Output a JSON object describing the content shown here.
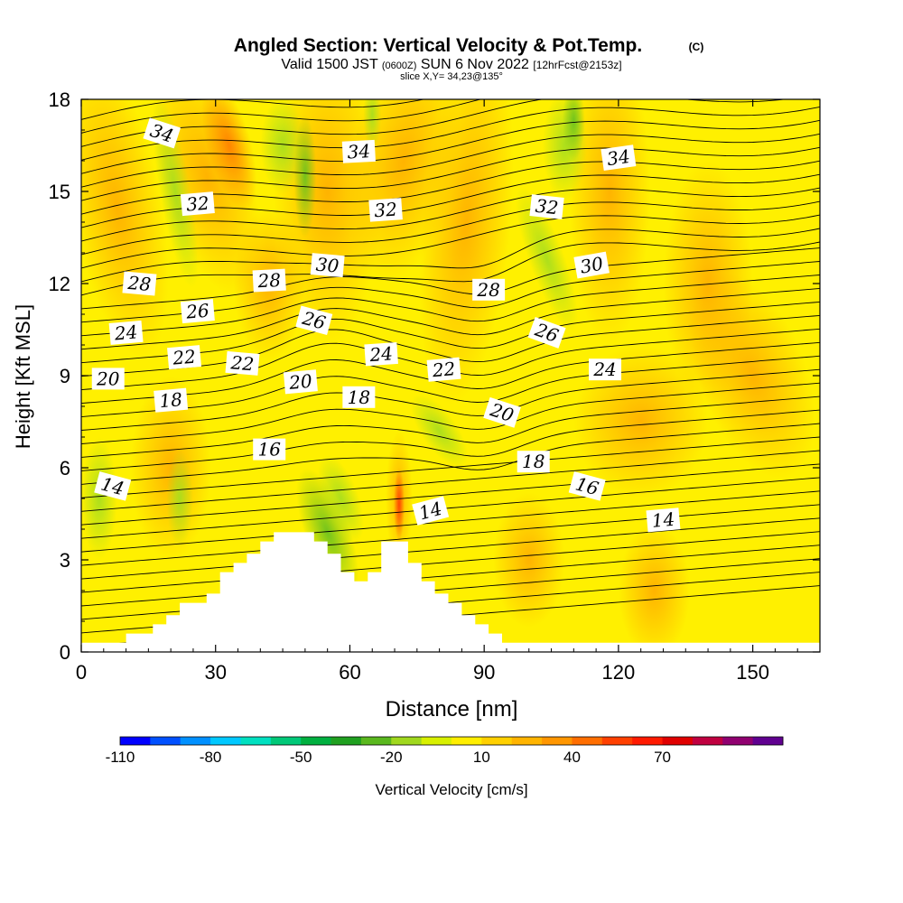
{
  "chart_data": {
    "type": "heatmap",
    "title": "Angled Section: Vertical Velocity & Pot.Temp.",
    "title_suffix": "(C)",
    "subtitle_parts": [
      "Valid 1500 JST",
      "(0600Z)",
      "SUN 6 Nov 2022",
      "[12hrFcst@2153z]"
    ],
    "slice_text": "slice X,Y= 34,23@135°",
    "xlabel": "Distance [nm]",
    "ylabel": "Height [Kft MSL]",
    "xlim": [
      0,
      165
    ],
    "ylim": [
      0,
      18
    ],
    "x_ticks": [
      "0",
      "30",
      "60",
      "90",
      "120",
      "150"
    ],
    "y_ticks": [
      "0",
      "3",
      "6",
      "9",
      "12",
      "15",
      "18"
    ],
    "colorbar": {
      "label": "Vertical Velocity [cm/s]",
      "tick_labels": [
        "-110",
        "-80",
        "-50",
        "-20",
        "10",
        "40",
        "70"
      ],
      "colors": [
        "#0000ff",
        "#0050ff",
        "#0090ff",
        "#00c8ff",
        "#00e0c0",
        "#00c878",
        "#00b040",
        "#20a020",
        "#5ab81e",
        "#a0d81e",
        "#d8f000",
        "#ffee00",
        "#ffd000",
        "#ffb400",
        "#ff9600",
        "#ff6e00",
        "#ff4000",
        "#ff1a00",
        "#e00000",
        "#c00040",
        "#900070",
        "#600090"
      ]
    },
    "contour_labels": [
      "34",
      "34",
      "34",
      "32",
      "32",
      "32",
      "30",
      "30",
      "28",
      "28",
      "28",
      "26",
      "26",
      "26",
      "24",
      "24",
      "24",
      "22",
      "22",
      "22",
      "20",
      "20",
      "20",
      "18",
      "18",
      "18",
      "16",
      "16",
      "14",
      "14",
      "14"
    ],
    "contour_label_points": [
      {
        "x": 18,
        "y": 16.9,
        "text": "34",
        "rot": 18
      },
      {
        "x": 62,
        "y": 16.3,
        "text": "34",
        "rot": -3
      },
      {
        "x": 120,
        "y": 16.1,
        "text": "34",
        "rot": -8
      },
      {
        "x": 26,
        "y": 14.6,
        "text": "32",
        "rot": -5
      },
      {
        "x": 68,
        "y": 14.4,
        "text": "32",
        "rot": -4
      },
      {
        "x": 104,
        "y": 14.5,
        "text": "32",
        "rot": 6
      },
      {
        "x": 55,
        "y": 12.6,
        "text": "30",
        "rot": 5
      },
      {
        "x": 114,
        "y": 12.6,
        "text": "30",
        "rot": -10
      },
      {
        "x": 13,
        "y": 12.0,
        "text": "28",
        "rot": 5
      },
      {
        "x": 42,
        "y": 12.1,
        "text": "28",
        "rot": -3
      },
      {
        "x": 91,
        "y": 11.8,
        "text": "28",
        "rot": 0
      },
      {
        "x": 26,
        "y": 11.1,
        "text": "26",
        "rot": -5
      },
      {
        "x": 52,
        "y": 10.8,
        "text": "26",
        "rot": 15
      },
      {
        "x": 104,
        "y": 10.4,
        "text": "26",
        "rot": 20
      },
      {
        "x": 10,
        "y": 10.4,
        "text": "24",
        "rot": -5
      },
      {
        "x": 67,
        "y": 9.7,
        "text": "24",
        "rot": -4
      },
      {
        "x": 117,
        "y": 9.2,
        "text": "24",
        "rot": 0
      },
      {
        "x": 23,
        "y": 9.6,
        "text": "22",
        "rot": -5
      },
      {
        "x": 36,
        "y": 9.4,
        "text": "22",
        "rot": 5
      },
      {
        "x": 81,
        "y": 9.2,
        "text": "22",
        "rot": -5
      },
      {
        "x": 6,
        "y": 8.9,
        "text": "20",
        "rot": 0
      },
      {
        "x": 49,
        "y": 8.8,
        "text": "20",
        "rot": -5
      },
      {
        "x": 94,
        "y": 7.8,
        "text": "20",
        "rot": 18
      },
      {
        "x": 20,
        "y": 8.2,
        "text": "18",
        "rot": -5
      },
      {
        "x": 62,
        "y": 8.3,
        "text": "18",
        "rot": 0
      },
      {
        "x": 101,
        "y": 6.2,
        "text": "18",
        "rot": 0
      },
      {
        "x": 42,
        "y": 6.6,
        "text": "16",
        "rot": 0
      },
      {
        "x": 113,
        "y": 5.4,
        "text": "16",
        "rot": 15
      },
      {
        "x": 7,
        "y": 5.4,
        "text": "14",
        "rot": 15
      },
      {
        "x": 78,
        "y": 4.6,
        "text": "14",
        "rot": -15
      },
      {
        "x": 130,
        "y": 4.3,
        "text": "14",
        "rot": -5
      }
    ],
    "terrain_kft": [
      [
        0,
        0.3
      ],
      [
        10,
        0.3
      ],
      [
        10,
        0.6
      ],
      [
        16,
        0.6
      ],
      [
        16,
        0.9
      ],
      [
        19,
        0.9
      ],
      [
        19,
        1.2
      ],
      [
        22,
        1.2
      ],
      [
        22,
        1.6
      ],
      [
        28,
        1.6
      ],
      [
        28,
        1.9
      ],
      [
        31,
        1.9
      ],
      [
        31,
        2.6
      ],
      [
        34,
        2.6
      ],
      [
        34,
        2.9
      ],
      [
        37,
        2.9
      ],
      [
        37,
        3.2
      ],
      [
        40,
        3.2
      ],
      [
        40,
        3.6
      ],
      [
        43,
        3.6
      ],
      [
        43,
        3.9
      ],
      [
        52,
        3.9
      ],
      [
        52,
        3.6
      ],
      [
        55,
        3.6
      ],
      [
        55,
        3.2
      ],
      [
        58,
        3.2
      ],
      [
        58,
        2.6
      ],
      [
        61,
        2.6
      ],
      [
        61,
        2.3
      ],
      [
        64,
        2.3
      ],
      [
        64,
        2.6
      ],
      [
        67,
        2.6
      ],
      [
        67,
        3.6
      ],
      [
        73,
        3.6
      ],
      [
        73,
        2.9
      ],
      [
        76,
        2.9
      ],
      [
        76,
        2.3
      ],
      [
        79,
        2.3
      ],
      [
        79,
        1.9
      ],
      [
        82,
        1.9
      ],
      [
        82,
        1.6
      ],
      [
        85,
        1.6
      ],
      [
        85,
        1.2
      ],
      [
        88,
        1.2
      ],
      [
        88,
        0.9
      ],
      [
        91,
        0.9
      ],
      [
        91,
        0.6
      ],
      [
        94,
        0.6
      ],
      [
        94,
        0.3
      ],
      [
        165,
        0.3
      ]
    ],
    "series": [],
    "grid": false,
    "legend": "bottom"
  }
}
